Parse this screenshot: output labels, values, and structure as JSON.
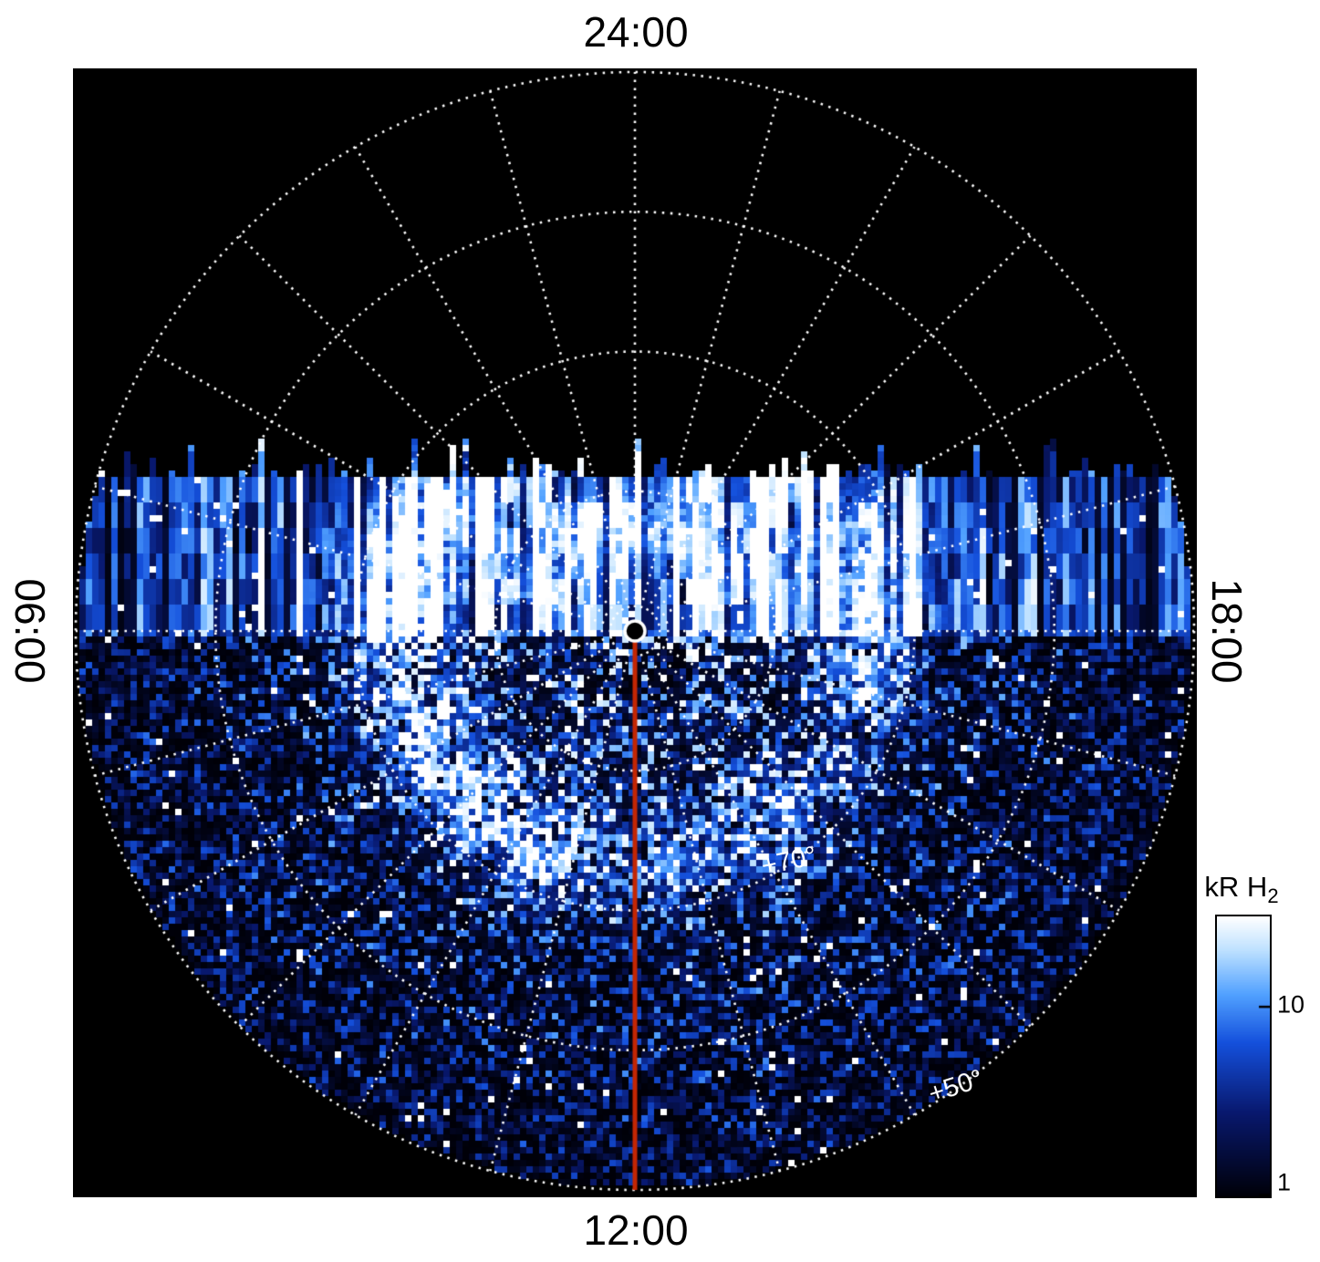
{
  "page": {
    "background": "#ffffff"
  },
  "time_labels": {
    "top": "24:00",
    "bottom": "12:00",
    "left": "06:00",
    "right": "18:00"
  },
  "latitude_labels": [
    {
      "text": "+70°"
    },
    {
      "text": "+50°"
    }
  ],
  "colorbar": {
    "title_main": "kR H",
    "title_sub": "2",
    "ticks": [
      {
        "label": "10",
        "frac_from_bottom": 0.677
      },
      {
        "label": "1",
        "frac_from_bottom": 0.004
      }
    ]
  },
  "colors": {
    "plot_background": "#000000",
    "grid": "#ffffff",
    "noon_meridian_line": "#c32603",
    "pole_marker": "#ffffff",
    "label_text": "#000000",
    "latitude_label_text": "#ffffff",
    "colormap": [
      [
        "0.00",
        "#000008"
      ],
      [
        "0.30",
        "#08186e"
      ],
      [
        "0.55",
        "#1450dc"
      ],
      [
        "0.72",
        "#50a0ff"
      ],
      [
        "0.88",
        "#bee1ff"
      ],
      [
        "1.00",
        "#ffffff"
      ]
    ]
  },
  "chart_data": {
    "type": "heatmap",
    "projection": "polar",
    "title": "",
    "description": "Polar projection map of auroral H2 emission brightness (kR) versus local time and latitude. Local time 24:00 at top, 12:00 at bottom, 06:00 at left, 18:00 at right.",
    "angular_axis": {
      "labels": [
        "24:00",
        "06:00",
        "12:00",
        "18:00"
      ],
      "positions_deg_from_top": [
        0,
        270,
        180,
        90
      ],
      "radial_gridline_spacing_deg": 15
    },
    "radial_axis": {
      "pole_latitude_deg": 90,
      "outer_latitude_deg": 50,
      "gridline_latitudes_deg": [
        80,
        70,
        60,
        50
      ],
      "labeled_latitudes": [
        "+70°",
        "+50°"
      ]
    },
    "colorbar": {
      "label": "kR H2",
      "scale": "log",
      "ticks": [
        10,
        1
      ],
      "range": [
        1,
        30
      ]
    },
    "grid": {
      "style": "dotted",
      "color": "#ffffff"
    },
    "features": {
      "data_coverage": "Emission data fills the disc below a horizontal cutoff slightly above the dawn-dusk line; the upper part of the disc is black (no data) with dotted grid only.",
      "upper_band": "Vertically streaked bright blue/white columns just below the data cutoff",
      "main_oval": "Bright white auroral arc at about 20 degrees colatitude, brightest in the dawn/pre-noon (lower-left) sector with bright patches near dusk",
      "noon_meridian_marker": "Solid red line from the pole to 12:00 at the outer edge",
      "pole_marker": "Small open white circle at the pole",
      "background_emission": "Speckled faint blue emission decreasing toward the outer (equatorward) edge"
    }
  }
}
